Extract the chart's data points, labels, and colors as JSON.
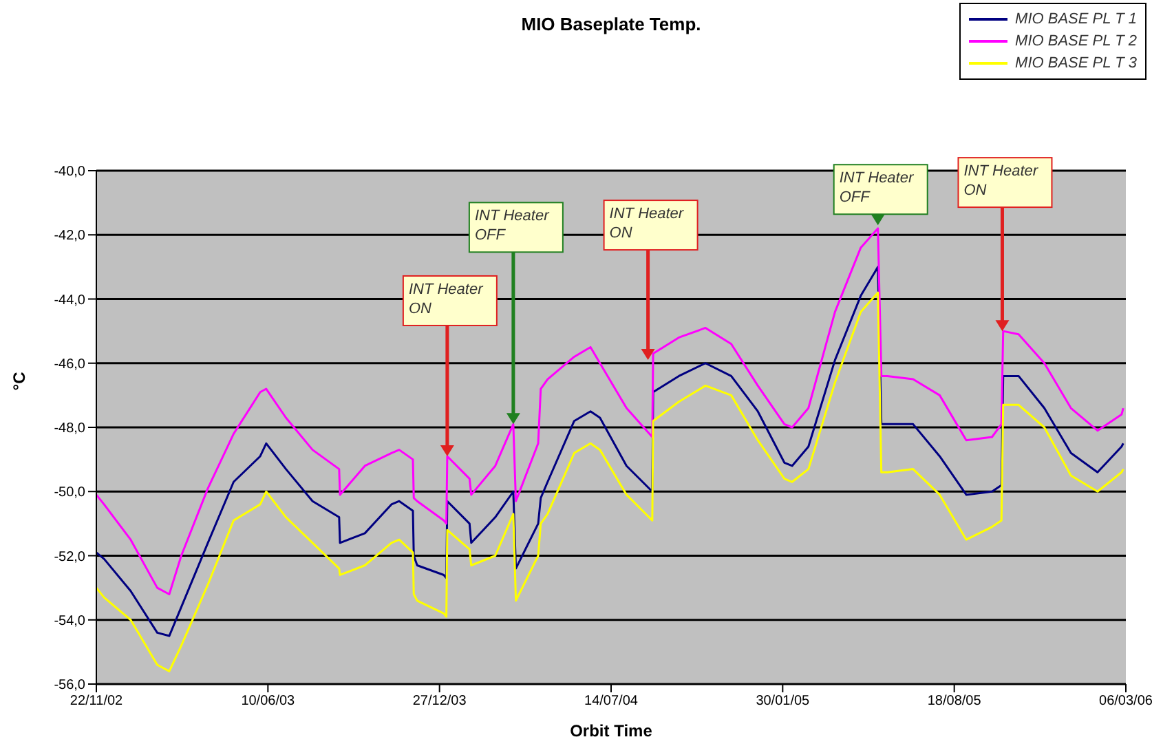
{
  "chart_data": {
    "type": "line",
    "title": "MIO Baseplate Temp.",
    "xlabel": "Orbit Time",
    "ylabel": "°C",
    "x": [
      "2002-11-22",
      "2002-12-01",
      "2003-01-01",
      "2003-02-01",
      "2003-02-15",
      "2003-03-01",
      "2003-04-01",
      "2003-05-01",
      "2003-06-01",
      "2003-06-08",
      "2003-07-01",
      "2003-08-01",
      "2003-09-01",
      "2003-09-02",
      "2003-10-01",
      "2003-11-01",
      "2003-11-10",
      "2003-11-26",
      "2003-11-27",
      "2003-12-01",
      "2004-01-01",
      "2004-01-04",
      "2004-01-05",
      "2004-01-31",
      "2004-02-02",
      "2004-03-01",
      "2004-03-22",
      "2004-03-25",
      "2004-04-20",
      "2004-04-23",
      "2004-05-01",
      "2004-06-01",
      "2004-06-20",
      "2004-07-01",
      "2004-08-01",
      "2004-08-31",
      "2004-09-01",
      "2004-10-01",
      "2004-11-01",
      "2004-12-01",
      "2005-01-01",
      "2005-02-01",
      "2005-02-10",
      "2005-03-01",
      "2005-04-01",
      "2005-05-01",
      "2005-05-21",
      "2005-05-25",
      "2005-06-01",
      "2005-07-01",
      "2005-08-01",
      "2005-09-01",
      "2005-10-01",
      "2005-10-12",
      "2005-10-14",
      "2005-11-01",
      "2005-12-01",
      "2006-01-01",
      "2006-02-01",
      "2006-03-01",
      "2006-03-03"
    ],
    "series": [
      {
        "name": "MIO BASE PL T 1",
        "color": "#000080",
        "values": [
          -51.9,
          -52.1,
          -53.1,
          -54.4,
          -54.5,
          -53.6,
          -51.6,
          -49.7,
          -48.9,
          -48.5,
          -49.3,
          -50.3,
          -50.8,
          -51.6,
          -51.3,
          -50.4,
          -50.3,
          -50.6,
          -52.0,
          -52.3,
          -52.6,
          -52.7,
          -50.3,
          -51.0,
          -51.6,
          -50.8,
          -50.0,
          -52.4,
          -51.0,
          -50.2,
          -49.7,
          -47.8,
          -47.5,
          -47.7,
          -49.2,
          -50.0,
          -46.9,
          -46.4,
          -46.0,
          -46.4,
          -47.5,
          -49.1,
          -49.2,
          -48.6,
          -45.9,
          -43.9,
          -43.0,
          -47.9,
          -47.9,
          -47.9,
          -48.9,
          -50.1,
          -50.0,
          -49.8,
          -46.4,
          -46.4,
          -47.4,
          -48.8,
          -49.4,
          -48.6,
          -48.5
        ]
      },
      {
        "name": "MIO BASE PL T 2",
        "color": "#ff00ff",
        "values": [
          -50.1,
          -50.4,
          -51.5,
          -53.0,
          -53.2,
          -52.0,
          -49.9,
          -48.2,
          -46.9,
          -46.8,
          -47.7,
          -48.7,
          -49.3,
          -50.1,
          -49.2,
          -48.8,
          -48.7,
          -49.0,
          -50.2,
          -50.3,
          -50.9,
          -51.0,
          -48.9,
          -49.6,
          -50.1,
          -49.2,
          -47.9,
          -50.3,
          -48.5,
          -46.8,
          -46.5,
          -45.8,
          -45.5,
          -46.0,
          -47.4,
          -48.3,
          -45.7,
          -45.2,
          -44.9,
          -45.4,
          -46.7,
          -47.9,
          -48.0,
          -47.4,
          -44.4,
          -42.4,
          -41.8,
          -46.4,
          -46.4,
          -46.5,
          -47.0,
          -48.4,
          -48.3,
          -47.9,
          -45.0,
          -45.1,
          -46.0,
          -47.4,
          -48.1,
          -47.6,
          -47.4
        ]
      },
      {
        "name": "MIO BASE PL T 3",
        "color": "#ffff00",
        "values": [
          -53.0,
          -53.3,
          -54.0,
          -55.4,
          -55.6,
          -54.8,
          -52.9,
          -50.9,
          -50.4,
          -50.0,
          -50.8,
          -51.6,
          -52.4,
          -52.6,
          -52.3,
          -51.6,
          -51.5,
          -51.9,
          -53.2,
          -53.4,
          -53.8,
          -53.9,
          -51.2,
          -51.8,
          -52.3,
          -52.0,
          -50.7,
          -53.4,
          -52.0,
          -51.0,
          -50.7,
          -48.8,
          -48.5,
          -48.7,
          -50.1,
          -50.9,
          -47.8,
          -47.2,
          -46.7,
          -47.0,
          -48.4,
          -49.6,
          -49.7,
          -49.3,
          -46.6,
          -44.4,
          -43.8,
          -49.4,
          -49.4,
          -49.3,
          -50.1,
          -51.5,
          -51.1,
          -50.9,
          -47.3,
          -47.3,
          -48.0,
          -49.5,
          -50.0,
          -49.4,
          -49.3
        ]
      }
    ],
    "xlim": [
      "2002-11-22",
      "2006-03-06"
    ],
    "xticks": [
      {
        "value": "2002-11-22",
        "label": "22/11/02"
      },
      {
        "value": "2003-06-10",
        "label": "10/06/03"
      },
      {
        "value": "2003-12-27",
        "label": "27/12/03"
      },
      {
        "value": "2004-07-14",
        "label": "14/07/04"
      },
      {
        "value": "2005-01-30",
        "label": "30/01/05"
      },
      {
        "value": "2005-08-18",
        "label": "18/08/05"
      },
      {
        "value": "2006-03-06",
        "label": "06/03/06"
      }
    ],
    "ylim": [
      -56,
      -40
    ],
    "yticks": [
      {
        "value": -56,
        "label": "-56,0"
      },
      {
        "value": -54,
        "label": "-54,0"
      },
      {
        "value": -52,
        "label": "-52,0"
      },
      {
        "value": -50,
        "label": "-50,0"
      },
      {
        "value": -48,
        "label": "-48,0"
      },
      {
        "value": -46,
        "label": "-46,0"
      },
      {
        "value": -44,
        "label": "-44,0"
      },
      {
        "value": -42,
        "label": "-42,0"
      },
      {
        "value": -40,
        "label": "-40,0"
      }
    ],
    "annotations": [
      {
        "text": "INT Heater\nON",
        "x": "2004-01-05",
        "y": -48.9
      },
      {
        "text": "INT Heater\nOFF",
        "x": "2004-03-22",
        "y": -47.9
      },
      {
        "text": "INT Heater\nON",
        "x": "2004-08-26",
        "y": -45.9
      },
      {
        "text": "INT Heater\nOFF",
        "x": "2005-05-21",
        "y": -41.7
      },
      {
        "text": "INT Heater\nON",
        "x": "2005-10-13",
        "y": -45.0
      }
    ],
    "grid": "y",
    "legend": "top right",
    "marker": "none",
    "line_style": "solid"
  }
}
